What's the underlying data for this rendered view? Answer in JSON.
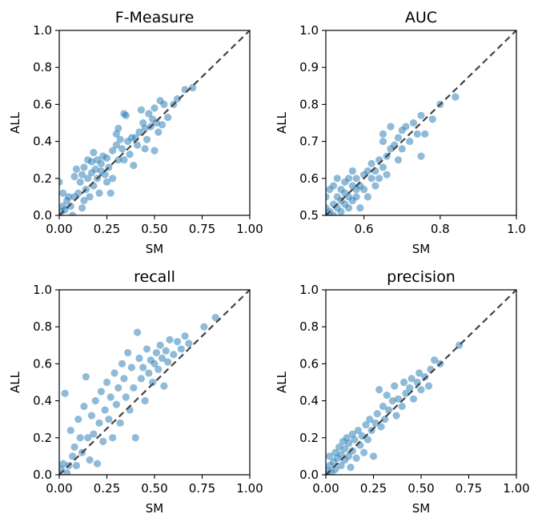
{
  "chart_data": [
    {
      "type": "scatter",
      "title": "F-Measure",
      "xlabel": "SM",
      "ylabel": "ALL",
      "xlim": [
        0,
        1
      ],
      "ylim": [
        0,
        1
      ],
      "x_ticks": [
        "0.00",
        "0.25",
        "0.50",
        "0.75",
        "1.00"
      ],
      "y_ticks": [
        "0.0",
        "0.2",
        "0.4",
        "0.6",
        "0.8",
        "1.0"
      ],
      "diagonal": true,
      "color": "#1f77b4",
      "points": [
        [
          0.0,
          0.18
        ],
        [
          0.01,
          0.02
        ],
        [
          0.02,
          0.05
        ],
        [
          0.02,
          0.12
        ],
        [
          0.03,
          0.03
        ],
        [
          0.04,
          0.08
        ],
        [
          0.05,
          0.1
        ],
        [
          0.06,
          0.05
        ],
        [
          0.07,
          0.0
        ],
        [
          0.08,
          0.1
        ],
        [
          0.08,
          0.21
        ],
        [
          0.09,
          0.25
        ],
        [
          0.1,
          0.12
        ],
        [
          0.11,
          0.18
        ],
        [
          0.12,
          0.04
        ],
        [
          0.12,
          0.22
        ],
        [
          0.13,
          0.08
        ],
        [
          0.13,
          0.26
        ],
        [
          0.14,
          0.14
        ],
        [
          0.15,
          0.3
        ],
        [
          0.15,
          0.2
        ],
        [
          0.16,
          0.1
        ],
        [
          0.17,
          0.23
        ],
        [
          0.17,
          0.29
        ],
        [
          0.18,
          0.16
        ],
        [
          0.18,
          0.34
        ],
        [
          0.19,
          0.25
        ],
        [
          0.2,
          0.2
        ],
        [
          0.2,
          0.3
        ],
        [
          0.21,
          0.12
        ],
        [
          0.22,
          0.24
        ],
        [
          0.22,
          0.28
        ],
        [
          0.23,
          0.32
        ],
        [
          0.24,
          0.22
        ],
        [
          0.25,
          0.18
        ],
        [
          0.25,
          0.31
        ],
        [
          0.26,
          0.26
        ],
        [
          0.27,
          0.12
        ],
        [
          0.28,
          0.35
        ],
        [
          0.28,
          0.2
        ],
        [
          0.3,
          0.38
        ],
        [
          0.3,
          0.44
        ],
        [
          0.31,
          0.3
        ],
        [
          0.31,
          0.47
        ],
        [
          0.32,
          0.41
        ],
        [
          0.33,
          0.36
        ],
        [
          0.34,
          0.3
        ],
        [
          0.34,
          0.55
        ],
        [
          0.35,
          0.54
        ],
        [
          0.36,
          0.4
        ],
        [
          0.37,
          0.33
        ],
        [
          0.38,
          0.42
        ],
        [
          0.39,
          0.27
        ],
        [
          0.4,
          0.42
        ],
        [
          0.41,
          0.38
        ],
        [
          0.42,
          0.45
        ],
        [
          0.43,
          0.57
        ],
        [
          0.44,
          0.5
        ],
        [
          0.45,
          0.36
        ],
        [
          0.45,
          0.47
        ],
        [
          0.46,
          0.41
        ],
        [
          0.47,
          0.55
        ],
        [
          0.48,
          0.48
        ],
        [
          0.49,
          0.52
        ],
        [
          0.5,
          0.58
        ],
        [
          0.5,
          0.35
        ],
        [
          0.51,
          0.5
        ],
        [
          0.52,
          0.45
        ],
        [
          0.53,
          0.62
        ],
        [
          0.54,
          0.49
        ],
        [
          0.55,
          0.6
        ],
        [
          0.57,
          0.53
        ],
        [
          0.6,
          0.6
        ],
        [
          0.62,
          0.63
        ],
        [
          0.66,
          0.68
        ],
        [
          0.7,
          0.69
        ]
      ]
    },
    {
      "type": "scatter",
      "title": "AUC",
      "xlabel": "SM",
      "ylabel": "ALL",
      "xlim": [
        0.5,
        1
      ],
      "ylim": [
        0.5,
        1
      ],
      "x_ticks": [
        "0.6",
        "0.8",
        "1.0"
      ],
      "y_ticks": [
        "0.5",
        "0.6",
        "0.7",
        "0.8",
        "0.9",
        "1.0"
      ],
      "diagonal": true,
      "color": "#1f77b4",
      "points": [
        [
          0.5,
          0.5
        ],
        [
          0.5,
          0.52
        ],
        [
          0.5,
          0.55
        ],
        [
          0.51,
          0.51
        ],
        [
          0.51,
          0.57
        ],
        [
          0.52,
          0.53
        ],
        [
          0.52,
          0.5
        ],
        [
          0.52,
          0.58
        ],
        [
          0.53,
          0.55
        ],
        [
          0.53,
          0.52
        ],
        [
          0.53,
          0.6
        ],
        [
          0.54,
          0.54
        ],
        [
          0.54,
          0.57
        ],
        [
          0.54,
          0.51
        ],
        [
          0.55,
          0.59
        ],
        [
          0.55,
          0.53
        ],
        [
          0.55,
          0.56
        ],
        [
          0.56,
          0.6
        ],
        [
          0.56,
          0.55
        ],
        [
          0.56,
          0.52
        ],
        [
          0.57,
          0.58
        ],
        [
          0.57,
          0.54
        ],
        [
          0.57,
          0.62
        ],
        [
          0.58,
          0.57
        ],
        [
          0.58,
          0.6
        ],
        [
          0.58,
          0.55
        ],
        [
          0.59,
          0.58
        ],
        [
          0.59,
          0.52
        ],
        [
          0.6,
          0.61
        ],
        [
          0.6,
          0.57
        ],
        [
          0.61,
          0.62
        ],
        [
          0.61,
          0.55
        ],
        [
          0.62,
          0.6
        ],
        [
          0.62,
          0.64
        ],
        [
          0.63,
          0.62
        ],
        [
          0.63,
          0.58
        ],
        [
          0.64,
          0.65
        ],
        [
          0.64,
          0.6
        ],
        [
          0.65,
          0.7
        ],
        [
          0.65,
          0.63
        ],
        [
          0.65,
          0.72
        ],
        [
          0.66,
          0.66
        ],
        [
          0.66,
          0.61
        ],
        [
          0.67,
          0.68
        ],
        [
          0.67,
          0.74
        ],
        [
          0.68,
          0.69
        ],
        [
          0.69,
          0.71
        ],
        [
          0.69,
          0.65
        ],
        [
          0.7,
          0.73
        ],
        [
          0.7,
          0.68
        ],
        [
          0.71,
          0.74
        ],
        [
          0.72,
          0.7
        ],
        [
          0.73,
          0.75
        ],
        [
          0.74,
          0.72
        ],
        [
          0.75,
          0.66
        ],
        [
          0.75,
          0.77
        ],
        [
          0.76,
          0.72
        ],
        [
          0.78,
          0.76
        ],
        [
          0.8,
          0.8
        ],
        [
          0.84,
          0.82
        ]
      ]
    },
    {
      "type": "scatter",
      "title": "recall",
      "xlabel": "SM",
      "ylabel": "ALL",
      "xlim": [
        0,
        1
      ],
      "ylim": [
        0,
        1
      ],
      "x_ticks": [
        "0.00",
        "0.25",
        "0.50",
        "0.75",
        "1.00"
      ],
      "y_ticks": [
        "0.0",
        "0.2",
        "0.4",
        "0.6",
        "0.8",
        "1.0"
      ],
      "diagonal": true,
      "color": "#1f77b4",
      "points": [
        [
          0.0,
          0.0
        ],
        [
          0.01,
          0.03
        ],
        [
          0.02,
          0.06
        ],
        [
          0.03,
          0.44
        ],
        [
          0.04,
          0.01
        ],
        [
          0.05,
          0.05
        ],
        [
          0.06,
          0.24
        ],
        [
          0.07,
          0.1
        ],
        [
          0.08,
          0.15
        ],
        [
          0.09,
          0.05
        ],
        [
          0.1,
          0.3
        ],
        [
          0.11,
          0.2
        ],
        [
          0.12,
          0.12
        ],
        [
          0.13,
          0.37
        ],
        [
          0.14,
          0.53
        ],
        [
          0.15,
          0.2
        ],
        [
          0.16,
          0.08
        ],
        [
          0.17,
          0.32
        ],
        [
          0.18,
          0.22
        ],
        [
          0.19,
          0.4
        ],
        [
          0.2,
          0.06
        ],
        [
          0.21,
          0.28
        ],
        [
          0.22,
          0.45
        ],
        [
          0.23,
          0.18
        ],
        [
          0.24,
          0.35
        ],
        [
          0.25,
          0.5
        ],
        [
          0.26,
          0.3
        ],
        [
          0.27,
          0.42
        ],
        [
          0.28,
          0.2
        ],
        [
          0.29,
          0.55
        ],
        [
          0.3,
          0.38
        ],
        [
          0.31,
          0.47
        ],
        [
          0.32,
          0.28
        ],
        [
          0.33,
          0.6
        ],
        [
          0.34,
          0.52
        ],
        [
          0.35,
          0.42
        ],
        [
          0.36,
          0.66
        ],
        [
          0.37,
          0.35
        ],
        [
          0.38,
          0.58
        ],
        [
          0.39,
          0.47
        ],
        [
          0.4,
          0.2
        ],
        [
          0.41,
          0.77
        ],
        [
          0.42,
          0.63
        ],
        [
          0.43,
          0.52
        ],
        [
          0.44,
          0.58
        ],
        [
          0.45,
          0.4
        ],
        [
          0.46,
          0.68
        ],
        [
          0.47,
          0.55
        ],
        [
          0.48,
          0.62
        ],
        [
          0.49,
          0.5
        ],
        [
          0.5,
          0.6
        ],
        [
          0.51,
          0.66
        ],
        [
          0.52,
          0.57
        ],
        [
          0.53,
          0.7
        ],
        [
          0.54,
          0.63
        ],
        [
          0.55,
          0.48
        ],
        [
          0.56,
          0.67
        ],
        [
          0.57,
          0.61
        ],
        [
          0.58,
          0.73
        ],
        [
          0.6,
          0.65
        ],
        [
          0.62,
          0.72
        ],
        [
          0.64,
          0.68
        ],
        [
          0.66,
          0.75
        ],
        [
          0.68,
          0.71
        ],
        [
          0.76,
          0.8
        ],
        [
          0.82,
          0.85
        ]
      ]
    },
    {
      "type": "scatter",
      "title": "precision",
      "xlabel": "SM",
      "ylabel": "ALL",
      "xlim": [
        0,
        1
      ],
      "ylim": [
        0,
        1
      ],
      "x_ticks": [
        "0.00",
        "0.25",
        "0.50",
        "0.75",
        "1.00"
      ],
      "y_ticks": [
        "0.0",
        "0.2",
        "0.4",
        "0.6",
        "0.8",
        "1.0"
      ],
      "diagonal": true,
      "color": "#1f77b4",
      "points": [
        [
          0.0,
          0.0
        ],
        [
          0.01,
          0.02
        ],
        [
          0.02,
          0.05
        ],
        [
          0.02,
          0.1
        ],
        [
          0.03,
          0.01
        ],
        [
          0.04,
          0.07
        ],
        [
          0.05,
          0.12
        ],
        [
          0.05,
          0.03
        ],
        [
          0.06,
          0.09
        ],
        [
          0.07,
          0.15
        ],
        [
          0.08,
          0.05
        ],
        [
          0.08,
          0.11
        ],
        [
          0.09,
          0.18
        ],
        [
          0.1,
          0.08
        ],
        [
          0.1,
          0.14
        ],
        [
          0.11,
          0.2
        ],
        [
          0.12,
          0.1
        ],
        [
          0.12,
          0.17
        ],
        [
          0.13,
          0.04
        ],
        [
          0.14,
          0.22
        ],
        [
          0.14,
          0.13
        ],
        [
          0.15,
          0.19
        ],
        [
          0.16,
          0.09
        ],
        [
          0.17,
          0.24
        ],
        [
          0.18,
          0.16
        ],
        [
          0.19,
          0.21
        ],
        [
          0.2,
          0.12
        ],
        [
          0.21,
          0.27
        ],
        [
          0.22,
          0.19
        ],
        [
          0.23,
          0.3
        ],
        [
          0.24,
          0.24
        ],
        [
          0.25,
          0.1
        ],
        [
          0.26,
          0.28
        ],
        [
          0.27,
          0.33
        ],
        [
          0.28,
          0.46
        ],
        [
          0.29,
          0.26
        ],
        [
          0.3,
          0.37
        ],
        [
          0.31,
          0.3
        ],
        [
          0.32,
          0.43
        ],
        [
          0.33,
          0.35
        ],
        [
          0.35,
          0.4
        ],
        [
          0.36,
          0.48
        ],
        [
          0.37,
          0.32
        ],
        [
          0.38,
          0.41
        ],
        [
          0.4,
          0.37
        ],
        [
          0.41,
          0.5
        ],
        [
          0.42,
          0.44
        ],
        [
          0.44,
          0.47
        ],
        [
          0.45,
          0.52
        ],
        [
          0.46,
          0.41
        ],
        [
          0.48,
          0.5
        ],
        [
          0.49,
          0.55
        ],
        [
          0.5,
          0.46
        ],
        [
          0.52,
          0.53
        ],
        [
          0.54,
          0.48
        ],
        [
          0.55,
          0.57
        ],
        [
          0.57,
          0.62
        ],
        [
          0.6,
          0.6
        ],
        [
          0.7,
          0.7
        ]
      ]
    }
  ]
}
